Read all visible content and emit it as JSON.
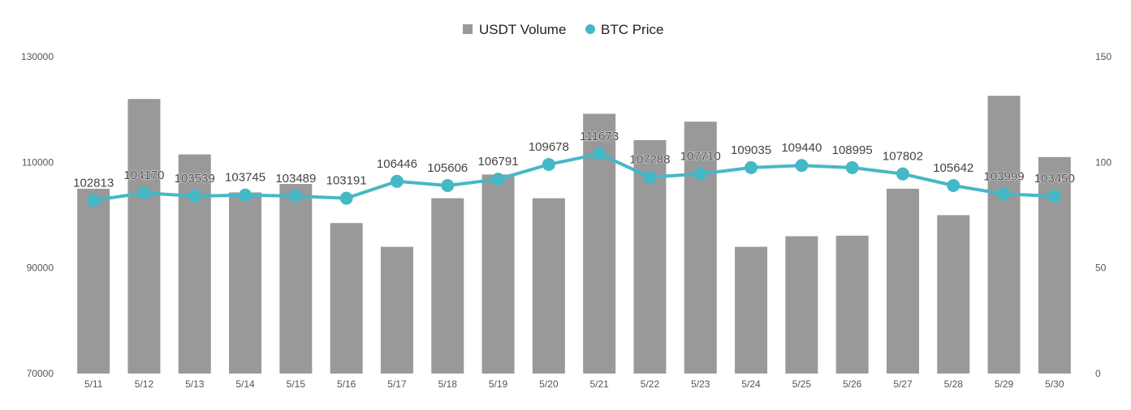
{
  "chart_data": {
    "type": "bar+line",
    "title": "",
    "categories": [
      "5/11",
      "5/12",
      "5/13",
      "5/14",
      "5/15",
      "5/16",
      "5/17",
      "5/18",
      "5/19",
      "5/20",
      "5/21",
      "5/22",
      "5/23",
      "5/24",
      "5/25",
      "5/26",
      "5/27",
      "5/28",
      "5/29",
      "5/30"
    ],
    "series": [
      {
        "name": "USDT Volume",
        "kind": "bar",
        "axis": "left",
        "color": "#999999",
        "values": [
          105000,
          122000,
          111500,
          104300,
          105900,
          98500,
          94000,
          103200,
          107700,
          103200,
          119200,
          114200,
          117700,
          94000,
          96000,
          96100,
          105000,
          100000,
          122600,
          111000
        ]
      },
      {
        "name": "BTC Price",
        "kind": "line",
        "axis": "right",
        "color": "#45b8c6",
        "values": [
          82,
          85.5,
          84,
          84.5,
          84,
          83,
          91,
          89,
          92,
          99,
          104,
          93,
          94.5,
          97.5,
          98.5,
          97.5,
          94.5,
          89,
          85,
          84
        ],
        "labels": [
          "102813",
          "104170",
          "103539",
          "103745",
          "103489",
          "103191",
          "106446",
          "105606",
          "106791",
          "109678",
          "111673",
          "107288",
          "107710",
          "109035",
          "109440",
          "108995",
          "107802",
          "105642",
          "103999",
          "103450"
        ]
      }
    ],
    "y_left": {
      "min": 70000,
      "max": 130000,
      "ticks": [
        "70000",
        "90000",
        "110000",
        "130000"
      ]
    },
    "y_right": {
      "min": 0,
      "max": 150,
      "ticks": [
        "0",
        "50",
        "100",
        "150"
      ]
    },
    "grid": false,
    "legend_position": "top-center"
  }
}
